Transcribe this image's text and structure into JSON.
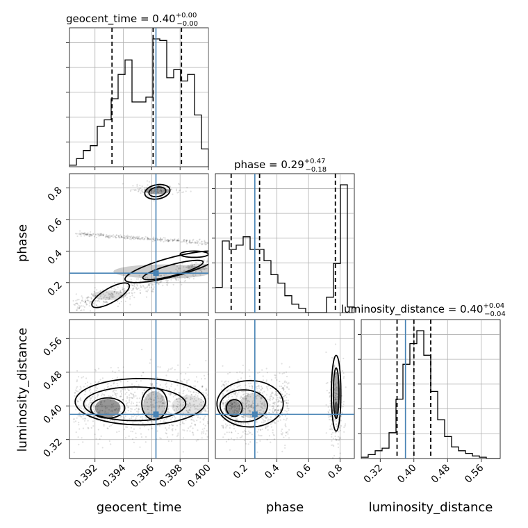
{
  "chart_data": {
    "type": "corner",
    "parameters": [
      "geocent_time",
      "phase",
      "luminosity_distance"
    ],
    "ranges": {
      "geocent_time": [
        0.3902,
        0.4
      ],
      "phase": [
        0.01,
        0.89
      ],
      "luminosity_distance": [
        0.275,
        0.605
      ]
    },
    "ticks": {
      "geocent_time": [
        0.392,
        0.394,
        0.396,
        0.398,
        0.4
      ],
      "phase": [
        0.2,
        0.4,
        0.6,
        0.8
      ],
      "luminosity_distance": [
        0.32,
        0.4,
        0.48,
        0.56
      ]
    },
    "tick_labels": {
      "geocent_time": [
        "0.392",
        "0.394",
        "0.396",
        "0.398",
        "0.400"
      ],
      "phase": [
        "0.2",
        "0.4",
        "0.6",
        "0.8"
      ],
      "luminosity_distance": [
        "0.32",
        "0.40",
        "0.48",
        "0.56"
      ]
    },
    "truths": {
      "geocent_time": 0.3963,
      "phase": 0.26,
      "luminosity_distance": 0.38
    },
    "titles": {
      "geocent_time": {
        "label": "geocent_time = 0.40",
        "sup": "+0.00",
        "sub": "−0.00"
      },
      "phase": {
        "label": "phase = 0.29",
        "sup": "+0.47",
        "sub": "−0.18"
      },
      "luminosity_distance": {
        "label": "luminosity_distance = 0.40",
        "sup": "+0.04",
        "sub": "−0.04"
      }
    },
    "quantiles": {
      "geocent_time": [
        0.3932,
        0.3961,
        0.3981
      ],
      "phase": [
        0.11,
        0.29,
        0.77
      ],
      "luminosity_distance": [
        0.36,
        0.4,
        0.44
      ]
    },
    "histograms": {
      "geocent_time": {
        "range": [
          0.3902,
          0.4
        ],
        "counts": [
          1,
          5,
          10,
          13,
          25,
          29,
          42,
          57,
          66,
          40,
          40,
          43,
          79,
          78,
          55,
          60,
          53,
          57,
          32,
          11
        ]
      },
      "phase": {
        "range": [
          0.01,
          0.89
        ],
        "counts": [
          18,
          51,
          45,
          48,
          54,
          45,
          45,
          37,
          27,
          21,
          12,
          6,
          3,
          0,
          0,
          0,
          11,
          35,
          91,
          4
        ]
      },
      "luminosity_distance": {
        "range": [
          0.275,
          0.605
        ],
        "counts": [
          1,
          3,
          6,
          8,
          20,
          46,
          73,
          89,
          99,
          80,
          52,
          30,
          17,
          9,
          6,
          4,
          2,
          1,
          0,
          0
        ]
      }
    }
  }
}
